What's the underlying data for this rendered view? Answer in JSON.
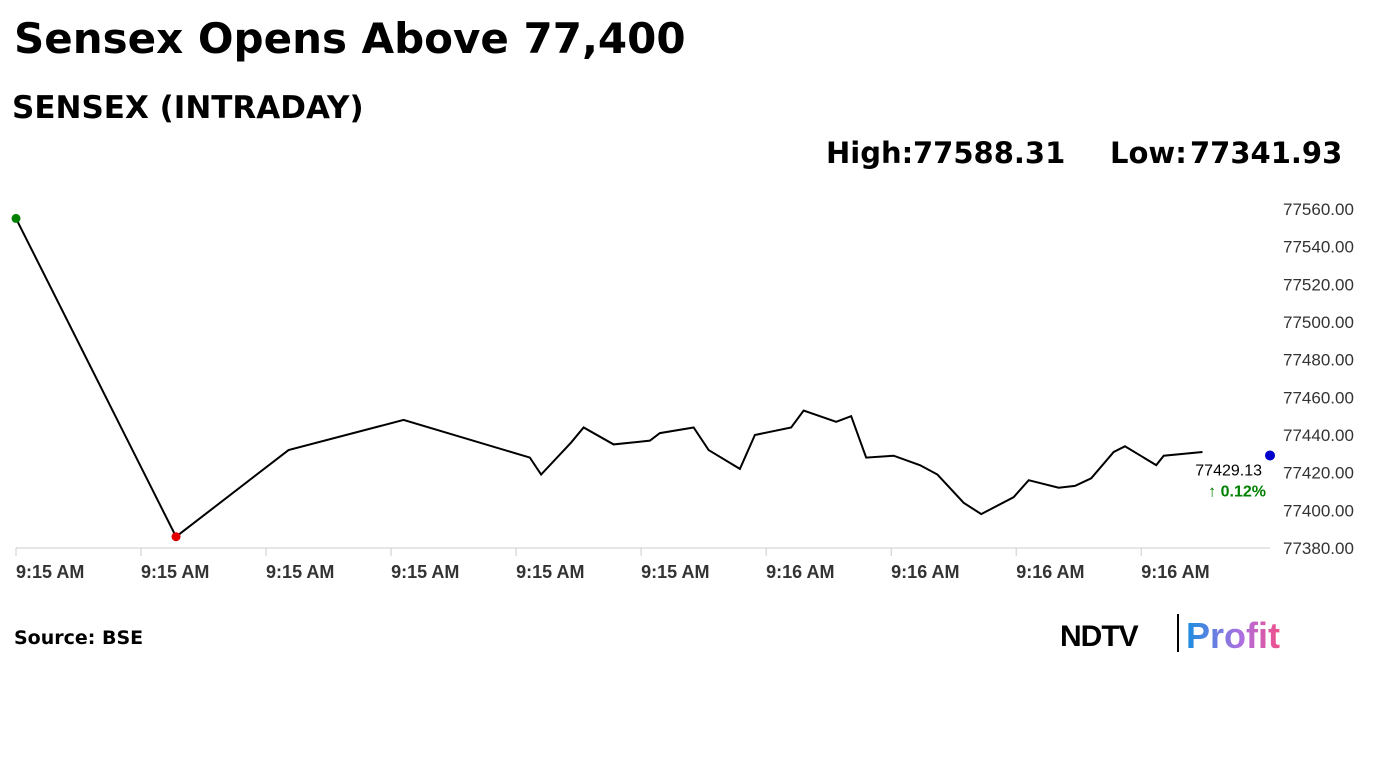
{
  "chart_data": {
    "type": "line",
    "title": "Sensex Opens Above 77,400",
    "subtitle": "SENSEX (INTRADAY)",
    "high_label": "High:",
    "high": 77588.31,
    "low_label": "Low:",
    "low": 77341.93,
    "x": [
      0,
      1.28,
      2.18,
      3.1,
      4.11,
      4.2,
      4.44,
      4.54,
      4.78,
      5.07,
      5.15,
      5.42,
      5.54,
      5.79,
      5.91,
      6.2,
      6.3,
      6.56,
      6.68,
      6.8,
      7.02,
      7.23,
      7.37,
      7.58,
      7.72,
      7.98,
      8.1,
      8.34,
      8.47,
      8.6,
      8.78,
      8.87,
      9.12,
      9.18,
      9.49
    ],
    "values": [
      77555,
      77386,
      77432,
      77448,
      77428,
      77419,
      77436,
      77444,
      77435,
      77437,
      77441,
      77444,
      77432,
      77422,
      77440,
      77444,
      77453,
      77447,
      77450,
      77428,
      77429,
      77424,
      77419,
      77404,
      77398,
      77407,
      77416,
      77412,
      77413,
      77417,
      77431,
      77434,
      77424,
      77429,
      77431
    ],
    "color": "#000000",
    "start_color": "#008000",
    "low_point_color": "#e00000",
    "last_color": "#0000cc",
    "last_value": 77429.13,
    "change": 0.12,
    "change_label": "↑ 0.12%",
    "change_color": "#008000",
    "xlim": [
      0,
      10.03
    ],
    "xticks": [
      {
        "value": 0,
        "label": "9:15 AM"
      },
      {
        "value": 1,
        "label": "9:15 AM"
      },
      {
        "value": 2,
        "label": "9:15 AM"
      },
      {
        "value": 3,
        "label": "9:15 AM"
      },
      {
        "value": 4,
        "label": "9:15 AM"
      },
      {
        "value": 5,
        "label": "9:15 AM"
      },
      {
        "value": 6,
        "label": "9:16 AM"
      },
      {
        "value": 7,
        "label": "9:16 AM"
      },
      {
        "value": 8,
        "label": "9:16 AM"
      },
      {
        "value": 9,
        "label": "9:16 AM"
      }
    ],
    "ylim": [
      77380,
      77560
    ],
    "yticks": [
      {
        "value": 77380,
        "label": "77380.00"
      },
      {
        "value": 77400,
        "label": "77400.00"
      },
      {
        "value": 77420,
        "label": "77420.00"
      },
      {
        "value": 77440,
        "label": "77440.00"
      },
      {
        "value": 77460,
        "label": "77460.00"
      },
      {
        "value": 77480,
        "label": "77480.00"
      },
      {
        "value": 77500,
        "label": "77500.00"
      },
      {
        "value": 77520,
        "label": "77520.00"
      },
      {
        "value": 77540,
        "label": "77540.00"
      },
      {
        "value": 77560,
        "label": "77560.00"
      }
    ],
    "source": "Source: BSE",
    "brand": "NDTV",
    "brand_product": "Profit"
  }
}
